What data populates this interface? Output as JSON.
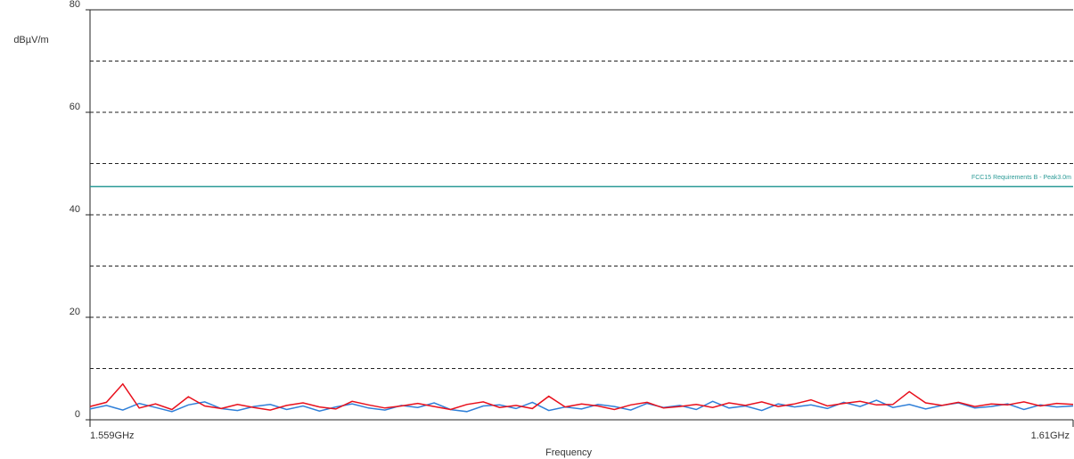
{
  "chart_data": {
    "type": "line",
    "ylabel": "dBµV/m",
    "xlabel": "Frequency",
    "xlim": [
      1.559,
      1.61
    ],
    "xticks": [
      {
        "value": 1.559,
        "label": "1.559GHz"
      },
      {
        "value": 1.61,
        "label": "1.61GHz"
      }
    ],
    "ylim": [
      0,
      80
    ],
    "yticks": [
      0,
      20,
      40,
      60,
      80
    ],
    "grid_ticks": [
      10,
      20,
      30,
      40,
      50,
      60,
      70
    ],
    "grid": true,
    "limit": {
      "name": "FCC15 Requirements B - Peak3.0m",
      "value": 45.5,
      "color": "#2a9a96"
    },
    "x": [
      1.559,
      1.55985,
      1.5607,
      1.56155,
      1.5624,
      1.56325,
      1.5641,
      1.56495,
      1.5658,
      1.56665,
      1.5675,
      1.56835,
      1.5692,
      1.57005,
      1.5709,
      1.57175,
      1.5726,
      1.57345,
      1.5743,
      1.57515,
      1.576,
      1.57685,
      1.5777,
      1.57855,
      1.5794,
      1.58025,
      1.5811,
      1.58195,
      1.5828,
      1.58365,
      1.5845,
      1.58535,
      1.5862,
      1.58705,
      1.5879,
      1.58875,
      1.5896,
      1.59045,
      1.5913,
      1.59215,
      1.593,
      1.59385,
      1.5947,
      1.59555,
      1.5964,
      1.59725,
      1.5981,
      1.59895,
      1.5998,
      1.60065,
      1.6015,
      1.60235,
      1.6032,
      1.60405,
      1.6049,
      1.60575,
      1.6066,
      1.60745,
      1.6083,
      1.60915,
      1.61
    ],
    "series": [
      {
        "color": "#2f7fd8",
        "values": [
          2.1,
          2.8,
          1.9,
          3.2,
          2.4,
          1.6,
          2.9,
          3.5,
          2.2,
          1.8,
          2.6,
          3.0,
          2.0,
          2.7,
          1.7,
          2.5,
          3.1,
          2.3,
          1.9,
          2.8,
          2.4,
          3.3,
          2.0,
          1.6,
          2.7,
          2.9,
          2.2,
          3.4,
          1.8,
          2.5,
          2.1,
          3.0,
          2.6,
          1.9,
          3.2,
          2.4,
          2.8,
          2.0,
          3.6,
          2.3,
          2.7,
          1.8,
          3.1,
          2.5,
          2.9,
          2.2,
          3.4,
          2.6,
          3.8,
          2.4,
          3.0,
          2.1,
          2.8,
          3.3,
          2.3,
          2.6,
          3.1,
          2.0,
          2.9,
          2.5,
          2.7
        ]
      },
      {
        "color": "#e8101c",
        "values": [
          2.6,
          3.4,
          7.0,
          2.3,
          3.1,
          2.0,
          4.5,
          2.7,
          2.2,
          3.0,
          2.4,
          1.9,
          2.8,
          3.3,
          2.5,
          2.1,
          3.6,
          2.9,
          2.3,
          2.7,
          3.2,
          2.6,
          2.0,
          3.0,
          3.5,
          2.4,
          2.8,
          2.2,
          4.6,
          2.5,
          3.1,
          2.7,
          2.0,
          2.9,
          3.4,
          2.3,
          2.6,
          3.0,
          2.4,
          3.3,
          2.8,
          3.5,
          2.6,
          3.1,
          3.9,
          2.7,
          3.2,
          3.6,
          2.9,
          3.0,
          5.5,
          3.3,
          2.8,
          3.4,
          2.6,
          3.1,
          2.9,
          3.5,
          2.7,
          3.2,
          3.0
        ]
      }
    ]
  }
}
